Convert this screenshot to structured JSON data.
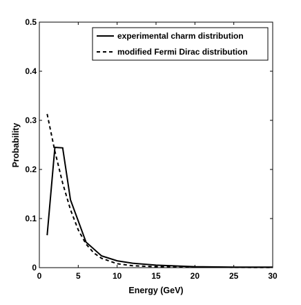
{
  "chart_data": {
    "type": "line",
    "title": "",
    "xlabel": "Energy (GeV)",
    "ylabel": "Probability",
    "xlim": [
      0,
      30
    ],
    "ylim": [
      0,
      0.5
    ],
    "xticks": [
      0,
      5,
      10,
      15,
      20,
      25,
      30
    ],
    "xtick_labels": [
      "0",
      "5",
      "10",
      "15",
      "20",
      "25",
      "30"
    ],
    "yticks": [
      0,
      0.1,
      0.2,
      0.3,
      0.4,
      0.5
    ],
    "ytick_labels": [
      "0",
      "0.1",
      "0.2",
      "0.3",
      "0.4",
      "0.5"
    ],
    "grid": false,
    "legend_position": "top-right",
    "series": [
      {
        "name": "experimental charm distribution",
        "style": "solid",
        "color": "#000000",
        "x": [
          1,
          2,
          3,
          4,
          6,
          8,
          10,
          12,
          15,
          20,
          25,
          30
        ],
        "y": [
          0.066,
          0.245,
          0.244,
          0.138,
          0.052,
          0.024,
          0.014,
          0.009,
          0.005,
          0.002,
          0.001,
          0.001
        ]
      },
      {
        "name": "modified Fermi Dirac distribution",
        "style": "dashed",
        "color": "#000000",
        "x": [
          1,
          2,
          3,
          4,
          5,
          6,
          7,
          8,
          10,
          12,
          15,
          20,
          25,
          30
        ],
        "y": [
          0.313,
          0.237,
          0.172,
          0.118,
          0.077,
          0.048,
          0.03,
          0.019,
          0.008,
          0.004,
          0.002,
          0.001,
          0.0005,
          0.0003
        ]
      }
    ]
  }
}
